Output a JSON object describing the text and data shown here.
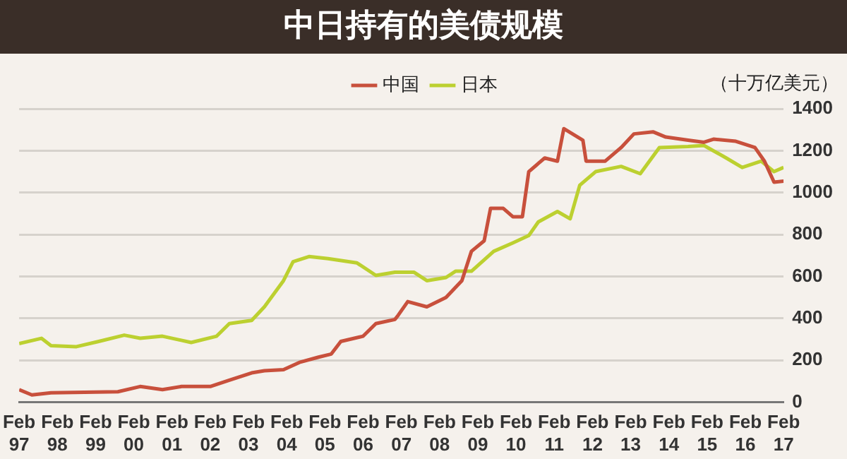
{
  "chart_data": {
    "type": "line",
    "title": "中日持有的美债规模",
    "ylabel": "（十万亿美元）",
    "xlim": [
      "1997-02",
      "2017-02"
    ],
    "xticks": [
      {
        "value": "1997-02",
        "label": "Feb 97"
      },
      {
        "value": "1998-02",
        "label": "Feb 98"
      },
      {
        "value": "1999-02",
        "label": "Feb 99"
      },
      {
        "value": "2000-02",
        "label": "Feb 00"
      },
      {
        "value": "2001-02",
        "label": "Feb 01"
      },
      {
        "value": "2002-02",
        "label": "Feb 02"
      },
      {
        "value": "2003-02",
        "label": "Feb 03"
      },
      {
        "value": "2004-02",
        "label": "Feb 04"
      },
      {
        "value": "2005-02",
        "label": "Feb 05"
      },
      {
        "value": "2006-02",
        "label": "Feb 06"
      },
      {
        "value": "2007-02",
        "label": "Feb 07"
      },
      {
        "value": "2008-02",
        "label": "Feb 08"
      },
      {
        "value": "2009-02",
        "label": "Feb 09"
      },
      {
        "value": "2010-02",
        "label": "Feb 10"
      },
      {
        "value": "2011-02",
        "label": "Feb 11"
      },
      {
        "value": "2012-02",
        "label": "Feb 12"
      },
      {
        "value": "2013-02",
        "label": "Feb 13"
      },
      {
        "value": "2014-02",
        "label": "Feb 14"
      },
      {
        "value": "2015-02",
        "label": "Feb 15"
      },
      {
        "value": "2016-02",
        "label": "Feb 16"
      },
      {
        "value": "2017-02",
        "label": "Feb 17"
      }
    ],
    "ylim": [
      0,
      1400
    ],
    "yticks": [
      0,
      200,
      400,
      600,
      800,
      1000,
      1200,
      1400
    ],
    "grid": "y",
    "legend": "top",
    "marker": "none",
    "line_style": "solid",
    "series": [
      {
        "name": "中国",
        "color": "#c8503c",
        "x": [
          "1997-02",
          "1997-06",
          "1997-12",
          "1999-09",
          "2000-04",
          "2000-11",
          "2001-05",
          "2002-02",
          "2002-08",
          "2003-03",
          "2003-07",
          "2004-01",
          "2004-06",
          "2004-12",
          "2005-04",
          "2005-07",
          "2006-02",
          "2006-06",
          "2006-12",
          "2007-01",
          "2007-04",
          "2007-10",
          "2008-04",
          "2008-09",
          "2008-12",
          "2009-04",
          "2009-06",
          "2009-10",
          "2010-01",
          "2010-04",
          "2010-06",
          "2010-11",
          "2011-03",
          "2011-05",
          "2011-11",
          "2011-12",
          "2012-06",
          "2012-11",
          "2013-03",
          "2013-09",
          "2014-01",
          "2014-08",
          "2015-01",
          "2015-04",
          "2015-11",
          "2016-05",
          "2016-08",
          "2016-11",
          "2017-02"
        ],
        "values": [
          60,
          35,
          45,
          50,
          75,
          60,
          75,
          75,
          105,
          140,
          150,
          155,
          190,
          215,
          230,
          290,
          315,
          375,
          395,
          415,
          480,
          455,
          500,
          580,
          720,
          770,
          925,
          925,
          885,
          885,
          1100,
          1165,
          1150,
          1305,
          1250,
          1150,
          1150,
          1215,
          1280,
          1290,
          1265,
          1250,
          1240,
          1255,
          1245,
          1215,
          1150,
          1050,
          1055
        ]
      },
      {
        "name": "日本",
        "color": "#bcd030",
        "x": [
          "1997-02",
          "1997-09",
          "1997-12",
          "1998-08",
          "1999-03",
          "1999-11",
          "2000-04",
          "2000-11",
          "2001-08",
          "2002-04",
          "2002-08",
          "2003-03",
          "2003-07",
          "2004-01",
          "2004-04",
          "2004-09",
          "2005-03",
          "2005-12",
          "2006-06",
          "2006-12",
          "2007-06",
          "2007-10",
          "2008-04",
          "2008-07",
          "2008-12",
          "2009-07",
          "2010-01",
          "2010-06",
          "2010-09",
          "2011-03",
          "2011-07",
          "2011-10",
          "2012-03",
          "2012-11",
          "2013-05",
          "2013-11",
          "2014-08",
          "2015-01",
          "2015-08",
          "2016-01",
          "2016-07",
          "2016-11",
          "2017-02"
        ],
        "values": [
          280,
          305,
          270,
          265,
          290,
          320,
          305,
          315,
          285,
          315,
          375,
          390,
          455,
          580,
          670,
          695,
          685,
          665,
          605,
          620,
          620,
          580,
          595,
          625,
          625,
          720,
          760,
          795,
          860,
          910,
          875,
          1035,
          1100,
          1125,
          1090,
          1215,
          1220,
          1225,
          1165,
          1120,
          1150,
          1100,
          1120
        ]
      }
    ]
  }
}
